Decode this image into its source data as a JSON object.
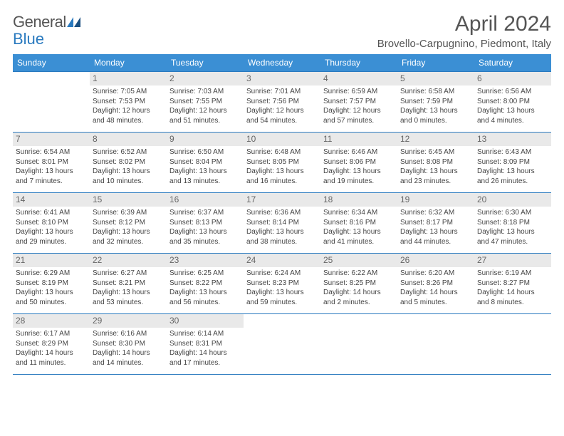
{
  "brand": {
    "part1": "General",
    "part2": "Blue"
  },
  "title": "April 2024",
  "location": "Brovello-Carpugnino, Piedmont, Italy",
  "colors": {
    "header_bg": "#3b8fd4",
    "rule": "#2a7abf",
    "daynum_bg": "#e9e9e9",
    "text": "#444444"
  },
  "weekday_labels": [
    "Sunday",
    "Monday",
    "Tuesday",
    "Wednesday",
    "Thursday",
    "Friday",
    "Saturday"
  ],
  "weeks": [
    [
      null,
      {
        "n": "1",
        "sunrise": "7:05 AM",
        "sunset": "7:53 PM",
        "daylight": "12 hours and 48 minutes."
      },
      {
        "n": "2",
        "sunrise": "7:03 AM",
        "sunset": "7:55 PM",
        "daylight": "12 hours and 51 minutes."
      },
      {
        "n": "3",
        "sunrise": "7:01 AM",
        "sunset": "7:56 PM",
        "daylight": "12 hours and 54 minutes."
      },
      {
        "n": "4",
        "sunrise": "6:59 AM",
        "sunset": "7:57 PM",
        "daylight": "12 hours and 57 minutes."
      },
      {
        "n": "5",
        "sunrise": "6:58 AM",
        "sunset": "7:59 PM",
        "daylight": "13 hours and 0 minutes."
      },
      {
        "n": "6",
        "sunrise": "6:56 AM",
        "sunset": "8:00 PM",
        "daylight": "13 hours and 4 minutes."
      }
    ],
    [
      {
        "n": "7",
        "sunrise": "6:54 AM",
        "sunset": "8:01 PM",
        "daylight": "13 hours and 7 minutes."
      },
      {
        "n": "8",
        "sunrise": "6:52 AM",
        "sunset": "8:02 PM",
        "daylight": "13 hours and 10 minutes."
      },
      {
        "n": "9",
        "sunrise": "6:50 AM",
        "sunset": "8:04 PM",
        "daylight": "13 hours and 13 minutes."
      },
      {
        "n": "10",
        "sunrise": "6:48 AM",
        "sunset": "8:05 PM",
        "daylight": "13 hours and 16 minutes."
      },
      {
        "n": "11",
        "sunrise": "6:46 AM",
        "sunset": "8:06 PM",
        "daylight": "13 hours and 19 minutes."
      },
      {
        "n": "12",
        "sunrise": "6:45 AM",
        "sunset": "8:08 PM",
        "daylight": "13 hours and 23 minutes."
      },
      {
        "n": "13",
        "sunrise": "6:43 AM",
        "sunset": "8:09 PM",
        "daylight": "13 hours and 26 minutes."
      }
    ],
    [
      {
        "n": "14",
        "sunrise": "6:41 AM",
        "sunset": "8:10 PM",
        "daylight": "13 hours and 29 minutes."
      },
      {
        "n": "15",
        "sunrise": "6:39 AM",
        "sunset": "8:12 PM",
        "daylight": "13 hours and 32 minutes."
      },
      {
        "n": "16",
        "sunrise": "6:37 AM",
        "sunset": "8:13 PM",
        "daylight": "13 hours and 35 minutes."
      },
      {
        "n": "17",
        "sunrise": "6:36 AM",
        "sunset": "8:14 PM",
        "daylight": "13 hours and 38 minutes."
      },
      {
        "n": "18",
        "sunrise": "6:34 AM",
        "sunset": "8:16 PM",
        "daylight": "13 hours and 41 minutes."
      },
      {
        "n": "19",
        "sunrise": "6:32 AM",
        "sunset": "8:17 PM",
        "daylight": "13 hours and 44 minutes."
      },
      {
        "n": "20",
        "sunrise": "6:30 AM",
        "sunset": "8:18 PM",
        "daylight": "13 hours and 47 minutes."
      }
    ],
    [
      {
        "n": "21",
        "sunrise": "6:29 AM",
        "sunset": "8:19 PM",
        "daylight": "13 hours and 50 minutes."
      },
      {
        "n": "22",
        "sunrise": "6:27 AM",
        "sunset": "8:21 PM",
        "daylight": "13 hours and 53 minutes."
      },
      {
        "n": "23",
        "sunrise": "6:25 AM",
        "sunset": "8:22 PM",
        "daylight": "13 hours and 56 minutes."
      },
      {
        "n": "24",
        "sunrise": "6:24 AM",
        "sunset": "8:23 PM",
        "daylight": "13 hours and 59 minutes."
      },
      {
        "n": "25",
        "sunrise": "6:22 AM",
        "sunset": "8:25 PM",
        "daylight": "14 hours and 2 minutes."
      },
      {
        "n": "26",
        "sunrise": "6:20 AM",
        "sunset": "8:26 PM",
        "daylight": "14 hours and 5 minutes."
      },
      {
        "n": "27",
        "sunrise": "6:19 AM",
        "sunset": "8:27 PM",
        "daylight": "14 hours and 8 minutes."
      }
    ],
    [
      {
        "n": "28",
        "sunrise": "6:17 AM",
        "sunset": "8:29 PM",
        "daylight": "14 hours and 11 minutes."
      },
      {
        "n": "29",
        "sunrise": "6:16 AM",
        "sunset": "8:30 PM",
        "daylight": "14 hours and 14 minutes."
      },
      {
        "n": "30",
        "sunrise": "6:14 AM",
        "sunset": "8:31 PM",
        "daylight": "14 hours and 17 minutes."
      },
      null,
      null,
      null,
      null
    ]
  ],
  "labels": {
    "sunrise_prefix": "Sunrise: ",
    "sunset_prefix": "Sunset: ",
    "daylight_prefix": "Daylight: "
  }
}
